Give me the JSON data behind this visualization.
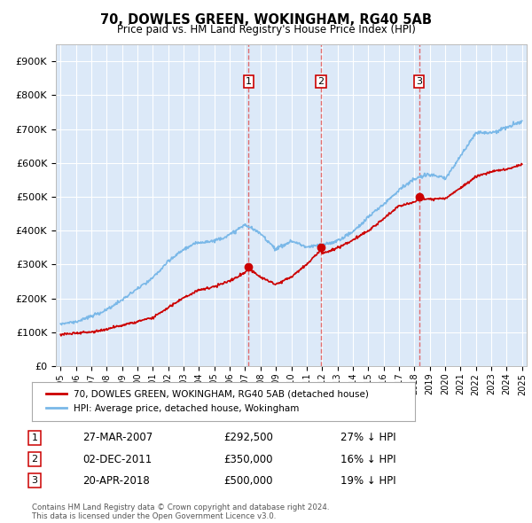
{
  "title": "70, DOWLES GREEN, WOKINGHAM, RG40 5AB",
  "subtitle": "Price paid vs. HM Land Registry's House Price Index (HPI)",
  "ylabel_ticks": [
    "£0",
    "£100K",
    "£200K",
    "£300K",
    "£400K",
    "£500K",
    "£600K",
    "£700K",
    "£800K",
    "£900K"
  ],
  "ytick_vals": [
    0,
    100000,
    200000,
    300000,
    400000,
    500000,
    600000,
    700000,
    800000,
    900000
  ],
  "ylim": [
    0,
    950000
  ],
  "xlim_start": 1994.7,
  "xlim_end": 2025.3,
  "background_color": "#dce9f8",
  "grid_color": "#ffffff",
  "sale_dates": [
    2007.22,
    2011.92,
    2018.3
  ],
  "sale_prices": [
    292500,
    350000,
    500000
  ],
  "sale_labels": [
    "1",
    "2",
    "3"
  ],
  "vline_color": "#e06060",
  "hpi_line_color": "#7ab8e8",
  "sale_line_color": "#cc0000",
  "legend_entries": [
    "70, DOWLES GREEN, WOKINGHAM, RG40 5AB (detached house)",
    "HPI: Average price, detached house, Wokingham"
  ],
  "table_rows": [
    {
      "label": "1",
      "date": "27-MAR-2007",
      "price": "£292,500",
      "hpi": "27% ↓ HPI"
    },
    {
      "label": "2",
      "date": "02-DEC-2011",
      "price": "£350,000",
      "hpi": "16% ↓ HPI"
    },
    {
      "label": "3",
      "date": "20-APR-2018",
      "price": "£500,000",
      "hpi": "19% ↓ HPI"
    }
  ],
  "footer": "Contains HM Land Registry data © Crown copyright and database right 2024.\nThis data is licensed under the Open Government Licence v3.0.",
  "xtick_years": [
    1995,
    1996,
    1997,
    1998,
    1999,
    2000,
    2001,
    2002,
    2003,
    2004,
    2005,
    2006,
    2007,
    2008,
    2009,
    2010,
    2011,
    2012,
    2013,
    2014,
    2015,
    2016,
    2017,
    2018,
    2019,
    2020,
    2021,
    2022,
    2023,
    2024,
    2025
  ],
  "hpi_anchors_x": [
    1995,
    1996,
    1997,
    1998,
    1999,
    2000,
    2001,
    2002,
    2003,
    2004,
    2005,
    2006,
    2007,
    2008,
    2009,
    2010,
    2011,
    2012,
    2013,
    2014,
    2015,
    2016,
    2017,
    2018,
    2019,
    2020,
    2021,
    2022,
    2023,
    2024,
    2025
  ],
  "hpi_anchors_y": [
    125000,
    132000,
    148000,
    168000,
    195000,
    228000,
    262000,
    310000,
    348000,
    368000,
    372000,
    390000,
    420000,
    395000,
    350000,
    375000,
    358000,
    365000,
    378000,
    405000,
    450000,
    490000,
    530000,
    560000,
    575000,
    560000,
    630000,
    700000,
    700000,
    715000,
    735000
  ],
  "sale_anchors_x": [
    1995,
    1997,
    1999,
    2001,
    2002,
    2003,
    2004,
    2005,
    2006,
    2007,
    2007.22,
    2008,
    2009,
    2010,
    2011,
    2011.92,
    2012,
    2013,
    2014,
    2015,
    2016,
    2017,
    2018,
    2018.3,
    2019,
    2020,
    2021,
    2022,
    2023,
    2024,
    2025
  ],
  "sale_anchors_y": [
    93000,
    100000,
    120000,
    145000,
    175000,
    205000,
    228000,
    238000,
    255000,
    280000,
    292500,
    268000,
    245000,
    268000,
    305000,
    350000,
    338000,
    355000,
    378000,
    405000,
    440000,
    478000,
    490000,
    500000,
    498000,
    500000,
    530000,
    565000,
    578000,
    585000,
    600000
  ]
}
